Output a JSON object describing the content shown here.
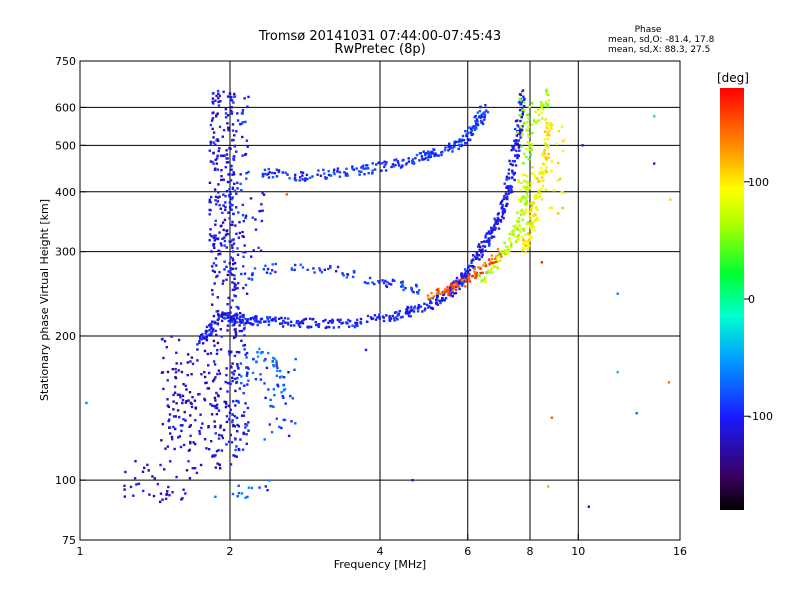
{
  "header": {
    "title": "Tromsø 20141031 07:44:00-07:45:43",
    "subtitle": "RwPretec (8p)"
  },
  "phase_box": {
    "heading": "Phase",
    "line_o": "mean, sd,O: -81.4, 17.8",
    "line_x": "mean, sd,X:  88.3, 27.5"
  },
  "colorbar": {
    "unit_label": "[deg]",
    "ticks": [
      "100",
      "0",
      "-100"
    ],
    "tick_values": [
      100,
      0,
      -100
    ],
    "range": [
      -180,
      180
    ]
  },
  "chart_data": {
    "type": "scatter",
    "xlabel": "Frequency [MHz]",
    "ylabel": "Stationary phase Virtual Height [km]",
    "x_scale": "log",
    "y_scale": "log",
    "xlim": [
      1,
      16
    ],
    "ylim": [
      75,
      750
    ],
    "grid": true,
    "x_ticks": [
      1,
      2,
      4,
      6,
      8,
      10,
      16
    ],
    "x_tick_labels": [
      "1",
      "2",
      "4",
      "6",
      "8",
      "10",
      "16"
    ],
    "y_ticks": [
      75,
      100,
      200,
      300,
      400,
      500,
      600,
      750
    ],
    "y_tick_labels": [
      "75",
      "100",
      "200",
      "300",
      "400",
      "500",
      "600",
      "750"
    ],
    "series": [
      {
        "traces": [
          {
            "x": [
              1.72,
              1.9,
              2.06,
              2.3,
              2.8,
              3.5,
              4.3,
              5.0,
              5.5,
              5.8,
              6.1
            ],
            "y": [
              190,
              220,
              218,
              215,
              213,
              212,
              220,
              232,
              245,
              260,
              275
            ],
            "phase": -100,
            "cnt": 10
          },
          {
            "x": [
              6.1,
              6.6,
              7.0,
              7.3,
              7.55,
              7.75
            ],
            "y": [
              280,
              320,
              360,
              420,
              520,
              640
            ],
            "phase": -105,
            "cnt": 11
          },
          {
            "x": [
              5.0,
              5.5,
              6.0,
              6.5,
              7.0
            ],
            "y": [
              240,
              250,
              262,
              278,
              298
            ],
            "phase": 150,
            "cnt": 5
          },
          {
            "x": [
              6.4,
              7.0,
              7.4,
              7.7,
              7.9
            ],
            "y": [
              262,
              292,
              320,
              360,
              420
            ],
            "phase": 70,
            "cnt": 6
          },
          {
            "x": [
              7.8,
              8.0,
              8.3,
              8.6,
              8.8
            ],
            "y": [
              300,
              340,
              400,
              470,
              560
            ],
            "phase": 95,
            "cnt": 7
          },
          {
            "x": [
              8.2,
              8.5,
              8.8
            ],
            "y": [
              560,
              610,
              650
            ],
            "phase": 60,
            "cnt": 3
          },
          {
            "x": [
              2.3,
              2.8,
              3.3,
              3.9,
              4.5,
              5.0,
              5.6,
              6.0,
              6.3,
              6.5
            ],
            "y": [
              440,
              430,
              438,
              448,
              462,
              478,
              495,
              520,
              560,
              600
            ],
            "phase": -90,
            "cnt": 7
          },
          {
            "x": [
              2.15,
              2.5,
              3.2,
              3.8,
              4.4,
              4.8
            ],
            "y": [
              265,
              280,
              275,
              262,
              255,
              250
            ],
            "phase": -90,
            "cnt": 4
          },
          {
            "x": [
              2.1,
              2.3,
              2.5,
              2.55
            ],
            "y": [
              160,
              185,
              175,
              150
            ],
            "phase": -70,
            "cnt": 3
          }
        ]
      },
      {
        "blobs": [
          {
            "x": [
              1.82,
              2.04
            ],
            "y": [
              300,
              650
            ],
            "phase": -110,
            "n": 190
          },
          {
            "x": [
              1.84,
              2.06
            ],
            "y": [
              105,
              300
            ],
            "phase": -115,
            "n": 150
          },
          {
            "x": [
              2.02,
              2.18
            ],
            "y": [
              110,
              650
            ],
            "phase": -100,
            "n": 170
          },
          {
            "x": [
              1.45,
              1.88
            ],
            "y": [
              115,
              200
            ],
            "phase": -118,
            "n": 140
          },
          {
            "x": [
              1.2,
              1.75
            ],
            "y": [
              90,
              110
            ],
            "phase": -115,
            "n": 45
          },
          {
            "x": [
              2.25,
              2.75
            ],
            "y": [
              120,
              195
            ],
            "phase": -90,
            "n": 40
          },
          {
            "x": [
              1.85,
              2.4
            ],
            "y": [
              90,
              100
            ],
            "phase": -80,
            "n": 14
          },
          {
            "x": [
              2.2,
              2.35
            ],
            "y": [
              290,
              400
            ],
            "phase": -110,
            "n": 15
          },
          {
            "x": [
              7.55,
              8.1
            ],
            "y": [
              450,
              650
            ],
            "phase": 60,
            "n": 45
          },
          {
            "x": [
              7.55,
              8.3
            ],
            "y": [
              310,
              440
            ],
            "phase": 80,
            "n": 35
          },
          {
            "x": [
              8.4,
              9.4
            ],
            "y": [
              360,
              600
            ],
            "phase": 95,
            "n": 25
          }
        ]
      },
      {
        "points": [
          {
            "x": 1.03,
            "y": 145,
            "phase": -60
          },
          {
            "x": 14.2,
            "y": 575,
            "phase": -30
          },
          {
            "x": 14.2,
            "y": 458,
            "phase": -100
          },
          {
            "x": 15.3,
            "y": 385,
            "phase": 110
          },
          {
            "x": 15.2,
            "y": 160,
            "phase": 140
          },
          {
            "x": 13.1,
            "y": 138,
            "phase": -70
          },
          {
            "x": 12.0,
            "y": 245,
            "phase": -60
          },
          {
            "x": 12.0,
            "y": 168,
            "phase": -40
          },
          {
            "x": 10.5,
            "y": 88,
            "phase": -115
          },
          {
            "x": 8.7,
            "y": 97,
            "phase": 120
          },
          {
            "x": 8.85,
            "y": 135,
            "phase": 150
          },
          {
            "x": 8.45,
            "y": 285,
            "phase": 170
          },
          {
            "x": 3.75,
            "y": 187,
            "phase": -100
          },
          {
            "x": 4.65,
            "y": 100,
            "phase": -120
          },
          {
            "x": 10.2,
            "y": 500,
            "phase": -100
          },
          {
            "x": 2.6,
            "y": 395,
            "phase": 150
          }
        ]
      }
    ]
  }
}
